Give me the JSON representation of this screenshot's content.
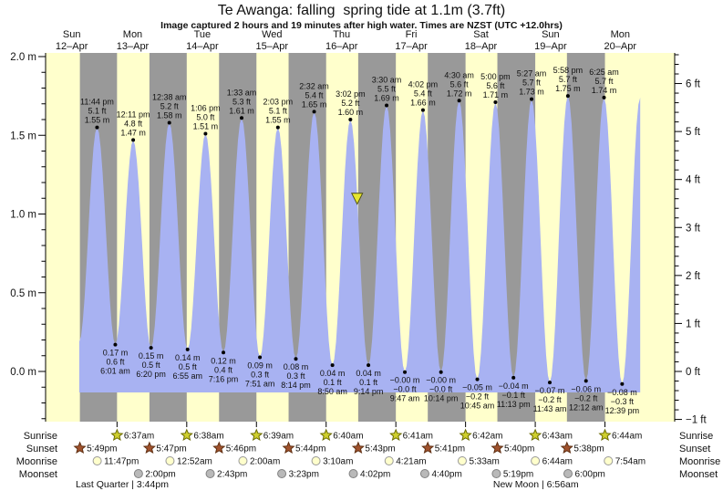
{
  "title": "Te Awanga: falling  spring tide at 1.1m (3.7ft)",
  "subtitle": "Image captured 2 hours and 19 minutes after high water. Times are NZST (UTC +12.0hrs)",
  "chart_data": {
    "type": "area",
    "title": "Te Awanga: falling  spring tide at 1.1m (3.7ft)",
    "days": [
      {
        "name": "Sun",
        "date": "12–Apr"
      },
      {
        "name": "Mon",
        "date": "13–Apr"
      },
      {
        "name": "Tue",
        "date": "14–Apr"
      },
      {
        "name": "Wed",
        "date": "15–Apr"
      },
      {
        "name": "Thu",
        "date": "16–Apr"
      },
      {
        "name": "Fri",
        "date": "17–Apr"
      },
      {
        "name": "Sat",
        "date": "18–Apr"
      },
      {
        "name": "Sun",
        "date": "19–Apr"
      },
      {
        "name": "Mon",
        "date": "20–Apr"
      }
    ],
    "y_axis_left_ticks": [
      "2.0 m",
      "1.5 m",
      "1.0 m",
      "0.5 m",
      "0.0 m"
    ],
    "y_axis_right_ticks": [
      "6 ft",
      "5 ft",
      "4 ft",
      "3 ft",
      "2 ft",
      "1 ft",
      "0 ft",
      "−1 ft"
    ],
    "ylim_m": [
      -0.32,
      2.02
    ],
    "tide_extremes": [
      {
        "kind": "low",
        "day": 0,
        "time": "5:36 pm",
        "value_m": 0.19,
        "labeled": false
      },
      {
        "kind": "high",
        "day": 0,
        "time": "11:44 pm",
        "value_m": 1.55,
        "m_label": "1.55 m",
        "ft_label": "5.1 ft",
        "labeled": true
      },
      {
        "kind": "low",
        "day": 1,
        "time": "6:01 am",
        "value_m": 0.17,
        "m_label": "0.17 m",
        "ft_label": "0.6 ft",
        "labeled": true
      },
      {
        "kind": "high",
        "day": 1,
        "time": "12:11 pm",
        "value_m": 1.47,
        "m_label": "1.47 m",
        "ft_label": "4.8 ft",
        "labeled": true
      },
      {
        "kind": "low",
        "day": 1,
        "time": "6:20 pm",
        "value_m": 0.15,
        "m_label": "0.15 m",
        "ft_label": "0.5 ft",
        "labeled": true
      },
      {
        "kind": "high",
        "day": 2,
        "time": "12:38 am",
        "value_m": 1.58,
        "m_label": "1.58 m",
        "ft_label": "5.2 ft",
        "labeled": true
      },
      {
        "kind": "low",
        "day": 2,
        "time": "6:55 am",
        "value_m": 0.14,
        "m_label": "0.14 m",
        "ft_label": "0.5 ft",
        "labeled": true
      },
      {
        "kind": "high",
        "day": 2,
        "time": "1:06 pm",
        "value_m": 1.51,
        "m_label": "1.51 m",
        "ft_label": "5.0 ft",
        "labeled": true
      },
      {
        "kind": "low",
        "day": 2,
        "time": "7:16 pm",
        "value_m": 0.12,
        "m_label": "0.12 m",
        "ft_label": "0.4 ft",
        "labeled": true
      },
      {
        "kind": "high",
        "day": 3,
        "time": "1:33 am",
        "value_m": 1.61,
        "m_label": "1.61 m",
        "ft_label": "5.3 ft",
        "labeled": true
      },
      {
        "kind": "low",
        "day": 3,
        "time": "7:51 am",
        "value_m": 0.09,
        "m_label": "0.09 m",
        "ft_label": "0.3 ft",
        "labeled": true
      },
      {
        "kind": "high",
        "day": 3,
        "time": "2:03 pm",
        "value_m": 1.55,
        "m_label": "1.55 m",
        "ft_label": "5.1 ft",
        "labeled": true
      },
      {
        "kind": "low",
        "day": 3,
        "time": "8:14 pm",
        "value_m": 0.08,
        "m_label": "0.08 m",
        "ft_label": "0.3 ft",
        "labeled": true
      },
      {
        "kind": "high",
        "day": 4,
        "time": "2:32 am",
        "value_m": 1.65,
        "m_label": "1.65 m",
        "ft_label": "5.4 ft",
        "labeled": true
      },
      {
        "kind": "low",
        "day": 4,
        "time": "8:50 am",
        "value_m": 0.04,
        "m_label": "0.04 m",
        "ft_label": "0.1 ft",
        "labeled": true
      },
      {
        "kind": "high",
        "day": 4,
        "time": "3:02 pm",
        "value_m": 1.6,
        "m_label": "1.60 m",
        "ft_label": "5.2 ft",
        "labeled": true
      },
      {
        "kind": "low",
        "day": 4,
        "time": "9:14 pm",
        "value_m": 0.04,
        "m_label": "0.04 m",
        "ft_label": "0.1 ft",
        "labeled": true
      },
      {
        "kind": "high",
        "day": 5,
        "time": "3:30 am",
        "value_m": 1.69,
        "m_label": "1.69 m",
        "ft_label": "5.5 ft",
        "labeled": true
      },
      {
        "kind": "low",
        "day": 5,
        "time": "9:47 am",
        "value_m": -0.004,
        "m_label": "−0.00 m",
        "ft_label": "−0.0 ft",
        "labeled": true
      },
      {
        "kind": "high",
        "day": 5,
        "time": "4:02 pm",
        "value_m": 1.66,
        "m_label": "1.66 m",
        "ft_label": "5.4 ft",
        "labeled": true
      },
      {
        "kind": "low",
        "day": 5,
        "time": "10:14 pm",
        "value_m": -0.004,
        "m_label": "−0.00 m",
        "ft_label": "−0.0 ft",
        "labeled": true
      },
      {
        "kind": "high",
        "day": 6,
        "time": "4:30 am",
        "value_m": 1.72,
        "m_label": "1.72 m",
        "ft_label": "5.6 ft",
        "labeled": true
      },
      {
        "kind": "low",
        "day": 6,
        "time": "10:45 am",
        "value_m": -0.05,
        "m_label": "−0.05 m",
        "ft_label": "−0.2 ft",
        "labeled": true
      },
      {
        "kind": "high",
        "day": 6,
        "time": "5:00 pm",
        "value_m": 1.71,
        "m_label": "1.71 m",
        "ft_label": "5.6 ft",
        "labeled": true
      },
      {
        "kind": "low",
        "day": 6,
        "time": "11:13 pm",
        "value_m": -0.04,
        "m_label": "−0.04 m",
        "ft_label": "−0.1 ft",
        "labeled": true
      },
      {
        "kind": "high",
        "day": 7,
        "time": "5:27 am",
        "value_m": 1.73,
        "m_label": "1.73 m",
        "ft_label": "5.7 ft",
        "labeled": true
      },
      {
        "kind": "low",
        "day": 7,
        "time": "11:43 am",
        "value_m": -0.07,
        "m_label": "−0.07 m",
        "ft_label": "−0.2 ft",
        "labeled": true
      },
      {
        "kind": "high",
        "day": 7,
        "time": "5:58 pm",
        "value_m": 1.75,
        "m_label": "1.75 m",
        "ft_label": "5.7 ft",
        "labeled": true
      },
      {
        "kind": "low",
        "day": 8,
        "time": "12:12 am",
        "value_m": -0.06,
        "m_label": "−0.06 m",
        "ft_label": "−0.2 ft",
        "labeled": true
      },
      {
        "kind": "high",
        "day": 8,
        "time": "6:25 am",
        "value_m": 1.74,
        "m_label": "1.74 m",
        "ft_label": "5.7 ft",
        "labeled": true
      },
      {
        "kind": "low",
        "day": 8,
        "time": "12:39 pm",
        "value_m": -0.08,
        "m_label": "−0.08 m",
        "ft_label": "−0.3 ft",
        "labeled": true
      },
      {
        "kind": "high",
        "day": 8,
        "time": "6:52 pm",
        "value_m": 1.74,
        "labeled": false
      }
    ],
    "capture_marker": {
      "day": 4,
      "time": "5:21 pm",
      "level_m": 1.1
    },
    "colors": {
      "day_band": "#ffffcc",
      "night_band": "#999999",
      "tide_fill": "#a8b2f2",
      "day_label": "#ee2222",
      "sunrise_star": "#cfcf2e",
      "sunset_star": "#a0522d",
      "moonrise_circle": "#ffffcc",
      "moonset_circle": "#b9b9b9",
      "marker_fill": "#e6e62e"
    }
  },
  "sun_moon": {
    "row_labels": {
      "sunrise": "Sunrise",
      "sunset": "Sunset",
      "moonrise": "Moonrise",
      "moonset": "Moonset"
    },
    "sunrise": [
      {
        "day": 1,
        "time": "6:37am"
      },
      {
        "day": 2,
        "time": "6:38am"
      },
      {
        "day": 3,
        "time": "6:39am"
      },
      {
        "day": 4,
        "time": "6:40am"
      },
      {
        "day": 5,
        "time": "6:41am"
      },
      {
        "day": 6,
        "time": "6:42am"
      },
      {
        "day": 7,
        "time": "6:43am"
      },
      {
        "day": 8,
        "time": "6:44am"
      }
    ],
    "sunset": [
      {
        "day": 0,
        "time": "5:49pm"
      },
      {
        "day": 1,
        "time": "5:47pm"
      },
      {
        "day": 2,
        "time": "5:46pm"
      },
      {
        "day": 3,
        "time": "5:44pm"
      },
      {
        "day": 4,
        "time": "5:43pm"
      },
      {
        "day": 5,
        "time": "5:41pm"
      },
      {
        "day": 6,
        "time": "5:40pm"
      },
      {
        "day": 7,
        "time": "5:38pm"
      }
    ],
    "moonrise": [
      {
        "day": 0,
        "time": "11:47pm"
      },
      {
        "day": 2,
        "time": "12:52am"
      },
      {
        "day": 3,
        "time": "2:00am"
      },
      {
        "day": 4,
        "time": "3:10am"
      },
      {
        "day": 5,
        "time": "4:21am"
      },
      {
        "day": 6,
        "time": "5:33am"
      },
      {
        "day": 7,
        "time": "6:44am"
      },
      {
        "day": 8,
        "time": "7:54am"
      }
    ],
    "moonset": [
      {
        "day": 1,
        "time": "2:00pm"
      },
      {
        "day": 2,
        "time": "2:43pm"
      },
      {
        "day": 3,
        "time": "3:23pm"
      },
      {
        "day": 4,
        "time": "4:02pm"
      },
      {
        "day": 5,
        "time": "4:40pm"
      },
      {
        "day": 6,
        "time": "5:19pm"
      },
      {
        "day": 7,
        "time": "6:00pm"
      }
    ],
    "phases": [
      {
        "label": "Last Quarter | 3:44pm",
        "day": 0,
        "time": "3:44 pm"
      },
      {
        "label": "New Moon | 6:56am",
        "day": 7,
        "time": "6:56 am"
      }
    ]
  }
}
